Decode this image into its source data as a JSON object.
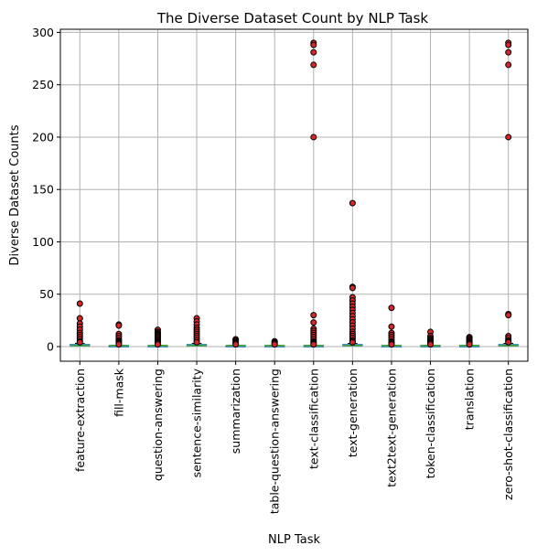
{
  "chart_data": {
    "type": "box",
    "title": "The Diverse Dataset Count by NLP Task",
    "xlabel": "NLP Task",
    "ylabel": "Diverse Dataset Counts",
    "ylim": [
      -14,
      303
    ],
    "yticks": [
      0,
      50,
      100,
      150,
      200,
      250,
      300
    ],
    "grid": true,
    "colors": {
      "box": "#1f77b4",
      "median": "#2ca02c",
      "flier_fill": "#d62728",
      "flier_edge": "#000000",
      "grid": "#b0b0b0"
    },
    "categories": [
      "feature-extraction",
      "fill-mask",
      "question-answering",
      "sentence-similarity",
      "summarization",
      "table-question-answering",
      "text-classification",
      "text-generation",
      "text2text-generation",
      "token-classification",
      "translation",
      "zero-shot-classification"
    ],
    "boxes": [
      {
        "q1": 1,
        "median": 1,
        "q3": 2,
        "whisker_low": 1,
        "whisker_high": 3,
        "outliers": [
          41,
          27,
          22,
          19,
          16,
          13,
          11,
          9,
          7,
          5,
          4
        ]
      },
      {
        "q1": 1,
        "median": 1,
        "q3": 1,
        "whisker_low": 1,
        "whisker_high": 1,
        "outliers": [
          21,
          20,
          12,
          10,
          8,
          6,
          5,
          4,
          3,
          2
        ]
      },
      {
        "q1": 1,
        "median": 1,
        "q3": 1,
        "whisker_low": 1,
        "whisker_high": 1,
        "outliers": [
          16,
          14,
          13,
          12,
          11,
          10,
          9,
          8,
          7,
          6,
          5,
          4,
          3,
          2
        ]
      },
      {
        "q1": 1,
        "median": 1,
        "q3": 2,
        "whisker_low": 1,
        "whisker_high": 3,
        "outliers": [
          27,
          24,
          21,
          18,
          16,
          14,
          12,
          10,
          8,
          6,
          4
        ]
      },
      {
        "q1": 1,
        "median": 1,
        "q3": 1,
        "whisker_low": 1,
        "whisker_high": 1,
        "outliers": [
          7,
          6,
          5,
          4,
          3,
          2
        ]
      },
      {
        "q1": 1,
        "median": 1,
        "q3": 1,
        "whisker_low": 1,
        "whisker_high": 1,
        "outliers": [
          5,
          4,
          3,
          2
        ]
      },
      {
        "q1": 1,
        "median": 1,
        "q3": 1,
        "whisker_low": 1,
        "whisker_high": 1,
        "outliers": [
          290,
          288,
          281,
          269,
          200,
          30,
          23,
          17,
          15,
          13,
          11,
          9,
          7,
          5,
          4,
          3,
          2
        ]
      },
      {
        "q1": 1,
        "median": 1,
        "q3": 2,
        "whisker_low": 1,
        "whisker_high": 3,
        "outliers": [
          137,
          57,
          56,
          47,
          44,
          41,
          38,
          35,
          32,
          29,
          26,
          23,
          20,
          17,
          14,
          12,
          10,
          8,
          6,
          5,
          4
        ]
      },
      {
        "q1": 1,
        "median": 1,
        "q3": 1,
        "whisker_low": 1,
        "whisker_high": 1,
        "outliers": [
          37,
          19,
          13,
          11,
          9,
          7,
          5,
          4,
          3,
          2
        ]
      },
      {
        "q1": 1,
        "median": 1,
        "q3": 1,
        "whisker_low": 1,
        "whisker_high": 1,
        "outliers": [
          14,
          10,
          8,
          7,
          6,
          5,
          4,
          3,
          2
        ]
      },
      {
        "q1": 1,
        "median": 1,
        "q3": 1,
        "whisker_low": 1,
        "whisker_high": 1,
        "outliers": [
          9,
          8,
          7,
          6,
          5,
          4,
          3,
          2
        ]
      },
      {
        "q1": 1,
        "median": 1,
        "q3": 2,
        "whisker_low": 1,
        "whisker_high": 3,
        "outliers": [
          290,
          288,
          281,
          269,
          200,
          31,
          30,
          10,
          8,
          6,
          5,
          4
        ]
      }
    ]
  }
}
